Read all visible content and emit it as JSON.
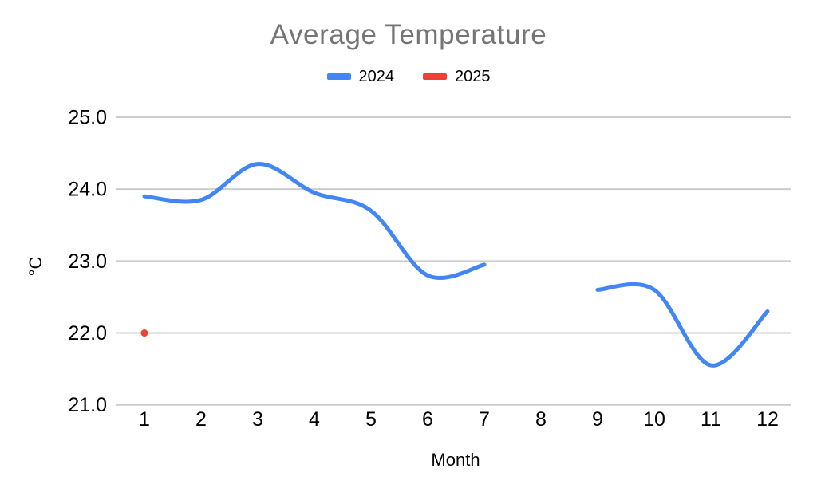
{
  "chart_data": {
    "type": "line",
    "title": "Average Temperature",
    "xlabel": "Month",
    "ylabel": "°C",
    "x": [
      1,
      2,
      3,
      4,
      5,
      6,
      7,
      8,
      9,
      10,
      11,
      12
    ],
    "series": [
      {
        "name": "2024",
        "color": "#4285F4",
        "style": "smooth-line",
        "values": [
          23.9,
          23.85,
          24.35,
          23.95,
          23.7,
          22.8,
          22.95,
          null,
          22.6,
          22.6,
          21.55,
          22.3
        ]
      },
      {
        "name": "2025",
        "color": "#EA4335",
        "style": "point",
        "values": [
          22.0,
          null,
          null,
          null,
          null,
          null,
          null,
          null,
          null,
          null,
          null,
          null
        ]
      }
    ],
    "ylim": [
      21.0,
      25.0
    ],
    "yticks": [
      21.0,
      22.0,
      23.0,
      24.0,
      25.0
    ],
    "ytick_format_decimals": 1,
    "grid": true,
    "smooth": true,
    "legend_position": "top",
    "background_color": "#ffffff",
    "title_color": "#757575",
    "gridline_color": "#cccccc",
    "axis_text_color": "#000000"
  }
}
